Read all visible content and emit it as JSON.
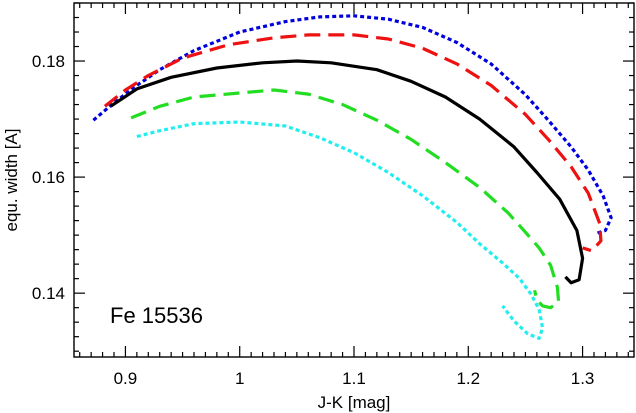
{
  "chart_data": {
    "type": "line",
    "title": "",
    "xlabel": "J-K  [mag]",
    "ylabel": "equ. width  [A]",
    "xlim": [
      0.855,
      1.345
    ],
    "ylim": [
      0.129,
      0.19
    ],
    "xticks": [
      0.9,
      1.0,
      1.1,
      1.2,
      1.3
    ],
    "xtick_labels": [
      "0.9",
      "1",
      "1.1",
      "1.2",
      "1.3"
    ],
    "yticks": [
      0.14,
      0.16,
      0.18
    ],
    "ytick_labels": [
      "0.14",
      "0.16",
      "0.18"
    ],
    "grid": false,
    "annotation": "Fe 15536",
    "series": [
      {
        "color": "#0000dd",
        "dash": "dotted",
        "points": [
          [
            0.872,
            0.1698
          ],
          [
            0.89,
            0.1728
          ],
          [
            0.91,
            0.1758
          ],
          [
            0.93,
            0.1785
          ],
          [
            0.96,
            0.1818
          ],
          [
            1.0,
            0.185
          ],
          [
            1.04,
            0.1868
          ],
          [
            1.07,
            0.1876
          ],
          [
            1.1,
            0.1878
          ],
          [
            1.13,
            0.1872
          ],
          [
            1.16,
            0.1858
          ],
          [
            1.19,
            0.1832
          ],
          [
            1.22,
            0.1795
          ],
          [
            1.25,
            0.1742
          ],
          [
            1.27,
            0.1698
          ],
          [
            1.29,
            0.1652
          ],
          [
            1.305,
            0.1612
          ],
          [
            1.318,
            0.1568
          ],
          [
            1.325,
            0.153
          ],
          [
            1.32,
            0.1508
          ],
          [
            1.312,
            0.1503
          ]
        ]
      },
      {
        "color": "#ee1111",
        "dash": "dashed",
        "points": [
          [
            0.882,
            0.1722
          ],
          [
            0.9,
            0.175
          ],
          [
            0.92,
            0.1775
          ],
          [
            0.95,
            0.1805
          ],
          [
            0.99,
            0.1828
          ],
          [
            1.03,
            0.184
          ],
          [
            1.06,
            0.1845
          ],
          [
            1.1,
            0.1845
          ],
          [
            1.13,
            0.1838
          ],
          [
            1.16,
            0.1822
          ],
          [
            1.19,
            0.1795
          ],
          [
            1.22,
            0.1758
          ],
          [
            1.25,
            0.1708
          ],
          [
            1.27,
            0.1665
          ],
          [
            1.29,
            0.1618
          ],
          [
            1.305,
            0.1572
          ],
          [
            1.315,
            0.152
          ],
          [
            1.316,
            0.149
          ],
          [
            1.308,
            0.1473
          ],
          [
            1.3,
            0.1478
          ]
        ]
      },
      {
        "color": "#000000",
        "dash": "solid",
        "points": [
          [
            0.887,
            0.1722
          ],
          [
            0.91,
            0.1752
          ],
          [
            0.94,
            0.1772
          ],
          [
            0.98,
            0.1788
          ],
          [
            1.02,
            0.1797
          ],
          [
            1.05,
            0.18
          ],
          [
            1.08,
            0.1797
          ],
          [
            1.12,
            0.1785
          ],
          [
            1.15,
            0.1765
          ],
          [
            1.18,
            0.1738
          ],
          [
            1.21,
            0.17
          ],
          [
            1.24,
            0.1652
          ],
          [
            1.26,
            0.1608
          ],
          [
            1.28,
            0.1562
          ],
          [
            1.295,
            0.1508
          ],
          [
            1.3,
            0.146
          ],
          [
            1.297,
            0.1423
          ],
          [
            1.29,
            0.1418
          ],
          [
            1.285,
            0.1428
          ]
        ]
      },
      {
        "color": "#22dd22",
        "dash": "dashed",
        "points": [
          [
            0.905,
            0.1702
          ],
          [
            0.93,
            0.1722
          ],
          [
            0.96,
            0.1738
          ],
          [
            1.0,
            0.1745
          ],
          [
            1.03,
            0.175
          ],
          [
            1.06,
            0.1743
          ],
          [
            1.09,
            0.1725
          ],
          [
            1.12,
            0.1698
          ],
          [
            1.15,
            0.1665
          ],
          [
            1.18,
            0.1625
          ],
          [
            1.21,
            0.1582
          ],
          [
            1.235,
            0.1538
          ],
          [
            1.25,
            0.1505
          ],
          [
            1.262,
            0.1478
          ],
          [
            1.272,
            0.1448
          ],
          [
            1.278,
            0.141
          ],
          [
            1.279,
            0.1385
          ],
          [
            1.272,
            0.1375
          ],
          [
            1.265,
            0.1378
          ],
          [
            1.26,
            0.1388
          ],
          [
            1.258,
            0.1405
          ]
        ]
      },
      {
        "color": "#22eeee",
        "dash": "dotted",
        "points": [
          [
            0.91,
            0.167
          ],
          [
            0.93,
            0.168
          ],
          [
            0.96,
            0.1692
          ],
          [
            1.0,
            0.1695
          ],
          [
            1.04,
            0.1688
          ],
          [
            1.07,
            0.1668
          ],
          [
            1.1,
            0.1642
          ],
          [
            1.13,
            0.1608
          ],
          [
            1.16,
            0.1568
          ],
          [
            1.19,
            0.1522
          ],
          [
            1.21,
            0.1485
          ],
          [
            1.23,
            0.1452
          ],
          [
            1.245,
            0.1425
          ],
          [
            1.255,
            0.1398
          ],
          [
            1.262,
            0.1372
          ],
          [
            1.265,
            0.134
          ],
          [
            1.262,
            0.1322
          ],
          [
            1.252,
            0.133
          ],
          [
            1.24,
            0.1352
          ],
          [
            1.23,
            0.1378
          ]
        ]
      }
    ]
  }
}
